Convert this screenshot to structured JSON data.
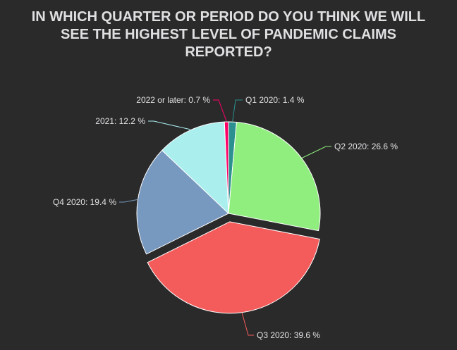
{
  "title_lines": [
    "IN WHICH QUARTER OR PERIOD DO YOU THINK WE WILL",
    "SEE THE HIGHEST LEVEL OF PANDEMIC CLAIMS",
    "REPORTED?"
  ],
  "colors": {
    "background": "#2a2a2b",
    "title": "#e0e0e3",
    "label": "#e0e0e3",
    "slice_border": "#ffffff"
  },
  "chart_data": {
    "type": "pie",
    "title": "IN WHICH QUARTER OR PERIOD DO YOU THINK WE WILL SEE THE HIGHEST LEVEL OF PANDEMIC CLAIMS REPORTED?",
    "unit": "%",
    "slices": [
      {
        "label": "Q1 2020",
        "value": 1.4,
        "display": "Q1 2020: 1.4 %",
        "color": "#2b908f",
        "exploded": false
      },
      {
        "label": "Q2 2020",
        "value": 26.6,
        "display": "Q2 2020: 26.6 %",
        "color": "#90ee7e",
        "exploded": false
      },
      {
        "label": "Q3 2020",
        "value": 39.6,
        "display": "Q3 2020: 39.6 %",
        "color": "#f45b5b",
        "exploded": true
      },
      {
        "label": "Q4 2020",
        "value": 19.4,
        "display": "Q4 2020: 19.4 %",
        "color": "#7798bf",
        "exploded": false
      },
      {
        "label": "2021",
        "value": 12.2,
        "display": "2021: 12.2 %",
        "color": "#aaeeee",
        "exploded": false
      },
      {
        "label": "2022 or later",
        "value": 0.7,
        "display": "2022 or later: 0.7 %",
        "color": "#ff0066",
        "exploded": false
      }
    ]
  }
}
